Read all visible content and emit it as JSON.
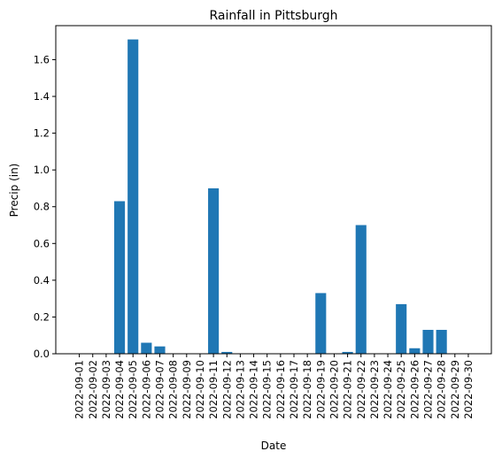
{
  "chart_data": {
    "type": "bar",
    "title": "Rainfall in Pittsburgh",
    "xlabel": "Date",
    "ylabel": "Precip (in)",
    "ylim": [
      0,
      1.785
    ],
    "yticks": [
      0.0,
      0.2,
      0.4,
      0.6,
      0.8,
      1.0,
      1.2,
      1.4,
      1.6
    ],
    "ytick_labels": [
      "0.0",
      "0.2",
      "0.4",
      "0.6",
      "0.8",
      "1.0",
      "1.2",
      "1.4",
      "1.6"
    ],
    "grid": false,
    "bar_color": "#1f77b4",
    "categories": [
      "2022-09-01",
      "2022-09-02",
      "2022-09-03",
      "2022-09-04",
      "2022-09-05",
      "2022-09-06",
      "2022-09-07",
      "2022-09-08",
      "2022-09-09",
      "2022-09-10",
      "2022-09-11",
      "2022-09-12",
      "2022-09-13",
      "2022-09-14",
      "2022-09-15",
      "2022-09-16",
      "2022-09-17",
      "2022-09-18",
      "2022-09-19",
      "2022-09-20",
      "2022-09-21",
      "2022-09-22",
      "2022-09-23",
      "2022-09-24",
      "2022-09-25",
      "2022-09-26",
      "2022-09-27",
      "2022-09-28",
      "2022-09-29",
      "2022-09-30"
    ],
    "values": [
      0,
      0,
      0,
      0.83,
      1.71,
      0.06,
      0.04,
      0,
      0,
      0,
      0.9,
      0.01,
      0,
      0,
      0,
      0,
      0,
      0,
      0.33,
      0,
      0.01,
      0.7,
      0,
      0,
      0.27,
      0.03,
      0.13,
      0.13,
      0,
      0
    ]
  }
}
